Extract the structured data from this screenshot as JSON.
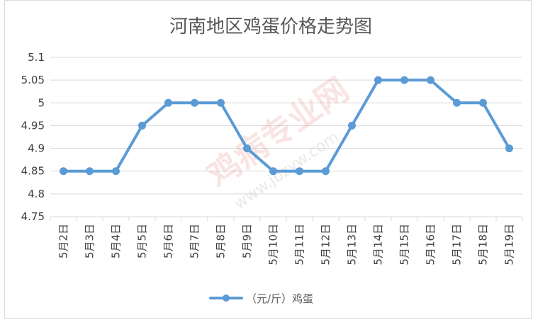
{
  "chart_data": {
    "type": "line",
    "title": "河南地区鸡蛋价格走势图",
    "categories": [
      "5月2日",
      "5月3日",
      "5月4日",
      "5月5日",
      "5月6日",
      "5月7日",
      "5月8日",
      "5月9日",
      "5月10日",
      "5月11日",
      "5月12日",
      "5月13日",
      "5月14日",
      "5月15日",
      "5月16日",
      "5月17日",
      "5月18日",
      "5月19日"
    ],
    "series": [
      {
        "name": "（元/斤）鸡蛋",
        "values": [
          4.85,
          4.85,
          4.85,
          4.95,
          5,
          5,
          5,
          4.9,
          4.85,
          4.85,
          4.85,
          4.95,
          5.05,
          5.05,
          5.05,
          5,
          5,
          4.9
        ],
        "color": "#5b9bd5"
      }
    ],
    "ylim": [
      4.75,
      5.1
    ],
    "yticks": [
      "5.1",
      "5.05",
      "5",
      "4.95",
      "4.9",
      "4.85",
      "4.8",
      "4.75"
    ],
    "grid": true,
    "legend_position": "bottom",
    "xlabel": "",
    "ylabel": ""
  },
  "watermark": {
    "brand": "鸡病专业网",
    "url": "www.jbzyw.com"
  },
  "colors": {
    "grid": "#d9d9d9",
    "axis_text": "#404040",
    "title": "#595959"
  }
}
